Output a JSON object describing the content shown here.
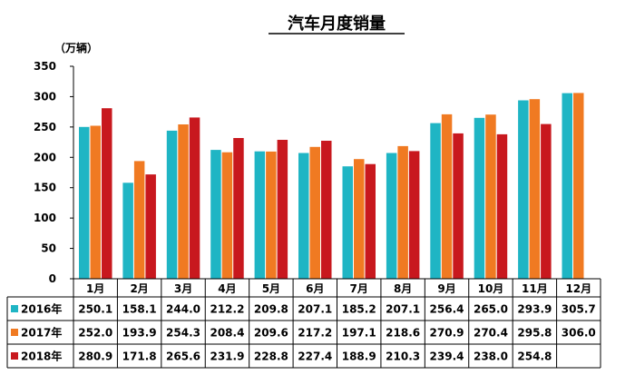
{
  "chart_data": {
    "type": "bar",
    "title": "汽车月度销量",
    "unit_label": "（万辆）",
    "ylim": [
      0,
      350
    ],
    "yticks": [
      "350",
      "300",
      "250",
      "200",
      "150",
      "100",
      "50",
      "0"
    ],
    "ytick_values": [
      350,
      300,
      250,
      200,
      150,
      100,
      50,
      0
    ],
    "grid": false,
    "legend": "table-left",
    "categories": [
      "1月",
      "2月",
      "3月",
      "4月",
      "5月",
      "6月",
      "7月",
      "8月",
      "9月",
      "10月",
      "11月",
      "12月"
    ],
    "series": [
      {
        "name": "2016年",
        "color": "#1FB5C4",
        "values": [
          250.1,
          158.1,
          244.0,
          212.2,
          209.8,
          207.1,
          185.2,
          207.1,
          256.4,
          265.0,
          293.9,
          305.7
        ],
        "labels": [
          "250.1",
          "158.1",
          "244.0",
          "212.2",
          "209.8",
          "207.1",
          "185.2",
          "207.1",
          "256.4",
          "265.0",
          "293.9",
          "305.7"
        ]
      },
      {
        "name": "2017年",
        "color": "#F07A22",
        "values": [
          252.0,
          193.9,
          254.3,
          208.4,
          209.6,
          217.2,
          197.1,
          218.6,
          270.9,
          270.4,
          295.8,
          306.0
        ],
        "labels": [
          "252.0",
          "193.9",
          "254.3",
          "208.4",
          "209.6",
          "217.2",
          "197.1",
          "218.6",
          "270.9",
          "270.4",
          "295.8",
          "306.0"
        ]
      },
      {
        "name": "2018年",
        "color": "#C8181E",
        "values": [
          280.9,
          171.8,
          265.6,
          231.9,
          228.8,
          227.4,
          188.9,
          210.3,
          239.4,
          238.0,
          254.8,
          null
        ],
        "labels": [
          "280.9",
          "171.8",
          "265.6",
          "231.9",
          "228.8",
          "227.4",
          "188.9",
          "210.3",
          "239.4",
          "238.0",
          "254.8",
          ""
        ]
      }
    ]
  }
}
